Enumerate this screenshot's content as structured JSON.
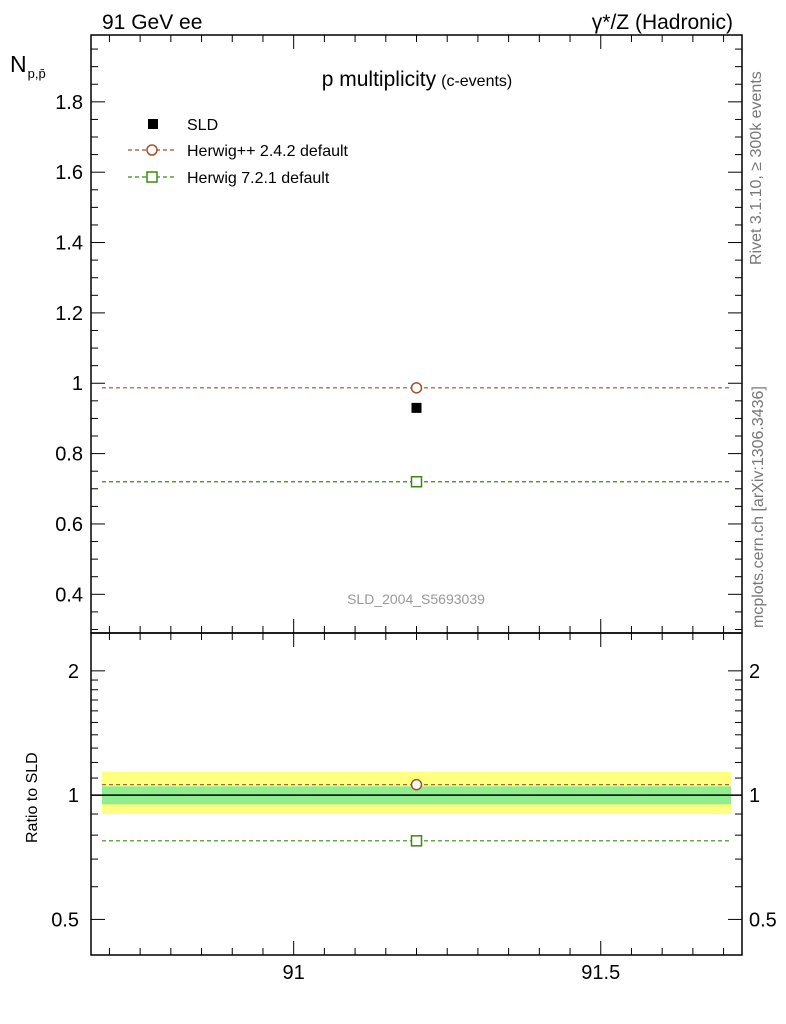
{
  "header": {
    "left": "91 GeV ee",
    "right": "γ*/Z (Hadronic)"
  },
  "side": {
    "rivet": "Rivet 3.1.10, ≥ 300k events",
    "mcplots": "mcplots.cern.ch [arXiv:1306.3436]"
  },
  "colors": {
    "data": "#000000",
    "herwigpp": "#a0522d",
    "herwig7": "#3a8a10",
    "band_inner": "#90ee90",
    "band_outer": "#ffff80",
    "watermark": "#999999"
  },
  "chart_data": [
    {
      "panel": "main",
      "type": "scatter",
      "title": "p multiplicity",
      "title_sub": "(c-events)",
      "ylabel_main": "N",
      "ylabel_sub": "p,p̄",
      "watermark": "SLD_2004_S5693039",
      "xlim": [
        90.67,
        91.73
      ],
      "ylim": [
        0.29,
        1.99
      ],
      "yticks": [
        0.4,
        0.6,
        0.8,
        1,
        1.2,
        1.4,
        1.6,
        1.8
      ],
      "ytick_labels": [
        "0.4",
        "0.6",
        "0.8",
        "1",
        "1.2",
        "1.4",
        "1.6",
        "1.8"
      ],
      "legend_position": "top-left",
      "series": [
        {
          "name": "SLD",
          "marker": "filled-square",
          "x": [
            91.2
          ],
          "y": [
            0.93
          ]
        },
        {
          "name": "Herwig++ 2.4.2 default",
          "marker": "open-circle",
          "line": "dashed",
          "x": [
            91.2
          ],
          "y": [
            0.987
          ]
        },
        {
          "name": "Herwig 7.2.1 default",
          "marker": "open-square",
          "line": "dashed",
          "x": [
            91.2
          ],
          "y": [
            0.72
          ]
        }
      ]
    },
    {
      "panel": "ratio",
      "type": "scatter",
      "ylabel": "Ratio to SLD",
      "yscale": "log",
      "xlim": [
        90.67,
        91.73
      ],
      "ylim": [
        0.41,
        2.47
      ],
      "yticks": [
        0.5,
        1,
        2
      ],
      "ytick_labels": [
        "0.5",
        "1",
        "2"
      ],
      "xticks": [
        91,
        91.5
      ],
      "xtick_labels": [
        "91",
        "91.5"
      ],
      "band_inner": [
        0.95,
        1.05
      ],
      "band_outer": [
        0.9,
        1.14
      ],
      "series": [
        {
          "name": "Herwig++ 2.4.2 default",
          "x": [
            91.2
          ],
          "y": [
            1.06
          ]
        },
        {
          "name": "Herwig 7.2.1 default",
          "x": [
            91.2
          ],
          "y": [
            0.775
          ]
        }
      ]
    }
  ]
}
